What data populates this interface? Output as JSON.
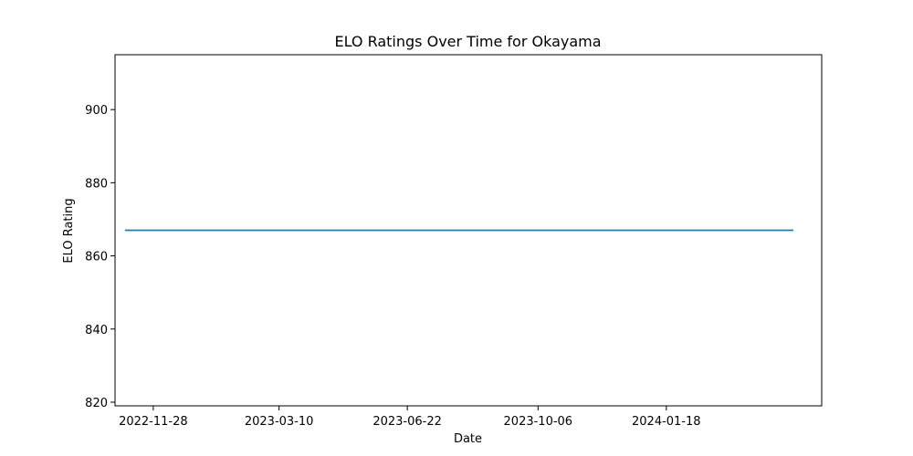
{
  "chart_data": {
    "type": "line",
    "title": "ELO Ratings Over Time for Okayama",
    "xlabel": "Date",
    "ylabel": "ELO Rating",
    "grid": false,
    "legend": "none",
    "x_axis_kind": "date",
    "xlim": [
      "2022-10-28",
      "2024-05-23"
    ],
    "ylim": [
      819,
      915
    ],
    "x_ticks": [
      "2022-11-28",
      "2023-03-10",
      "2023-06-22",
      "2023-10-06",
      "2024-01-18"
    ],
    "y_ticks": [
      820,
      840,
      860,
      880,
      900
    ],
    "series": [
      {
        "color": "#1f77b4",
        "points": [
          {
            "x": "2022-11-05",
            "y": 867
          },
          {
            "x": "2024-04-30",
            "y": 867
          }
        ]
      }
    ]
  }
}
